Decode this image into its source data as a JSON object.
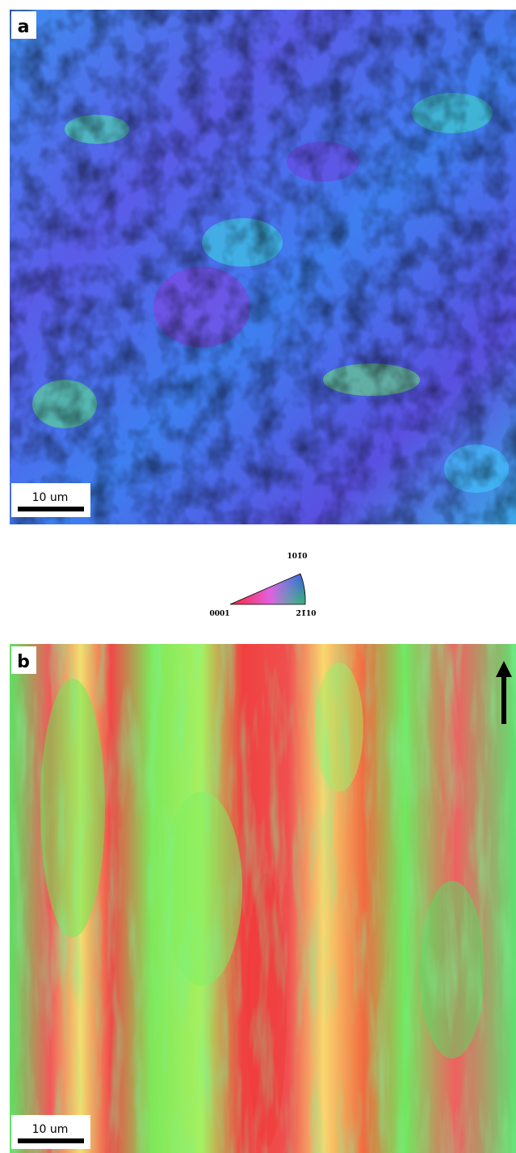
{
  "panels": [
    {
      "label": "a",
      "scale_bar": "10 um"
    },
    {
      "label": "b",
      "scale_bar": "10 um"
    }
  ],
  "legend": {
    "top": "101̄0",
    "left": "0001",
    "right": "2̄1̄10"
  }
}
